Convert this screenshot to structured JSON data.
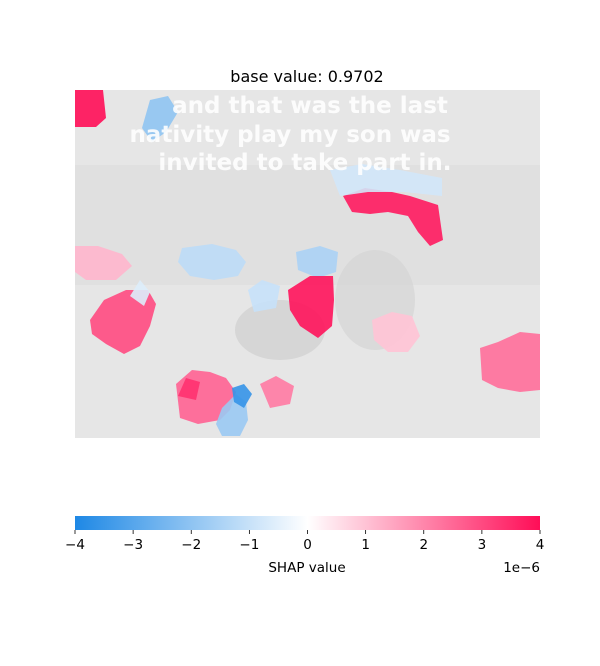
{
  "chart_data": {
    "type": "heatmap",
    "title": "base value: 0.9702",
    "image_caption_lines": [
      "and that was the last",
      "nativity play my son was",
      "invited to take part in."
    ],
    "colorbar": {
      "xlabel": "SHAP value",
      "range": [
        -4,
        4
      ],
      "ticks": [
        -4,
        -3,
        -2,
        -1,
        0,
        1,
        2,
        3,
        4
      ],
      "tick_labels": [
        "−4",
        "−3",
        "−2",
        "−1",
        "0",
        "1",
        "2",
        "3",
        "4"
      ],
      "scale_label": "1e−6",
      "negative_color": "#1e88e5",
      "positive_color": "#ff0d57"
    },
    "segments": [
      {
        "value": 4.0
      },
      {
        "value": -2.0
      },
      {
        "value": 3.8
      },
      {
        "value": -1.5
      },
      {
        "value": 3.9
      },
      {
        "value": -1.2
      },
      {
        "value": 3.0
      },
      {
        "value": 1.2
      },
      {
        "value": 2.4
      },
      {
        "value": 2.6
      },
      {
        "value": -1.8
      },
      {
        "value": -3.6
      },
      {
        "value": 3.4
      },
      {
        "value": 2.2
      },
      {
        "value": 1.0
      },
      {
        "value": -0.8
      },
      {
        "value": -0.6
      },
      {
        "value": -1.0
      }
    ]
  }
}
